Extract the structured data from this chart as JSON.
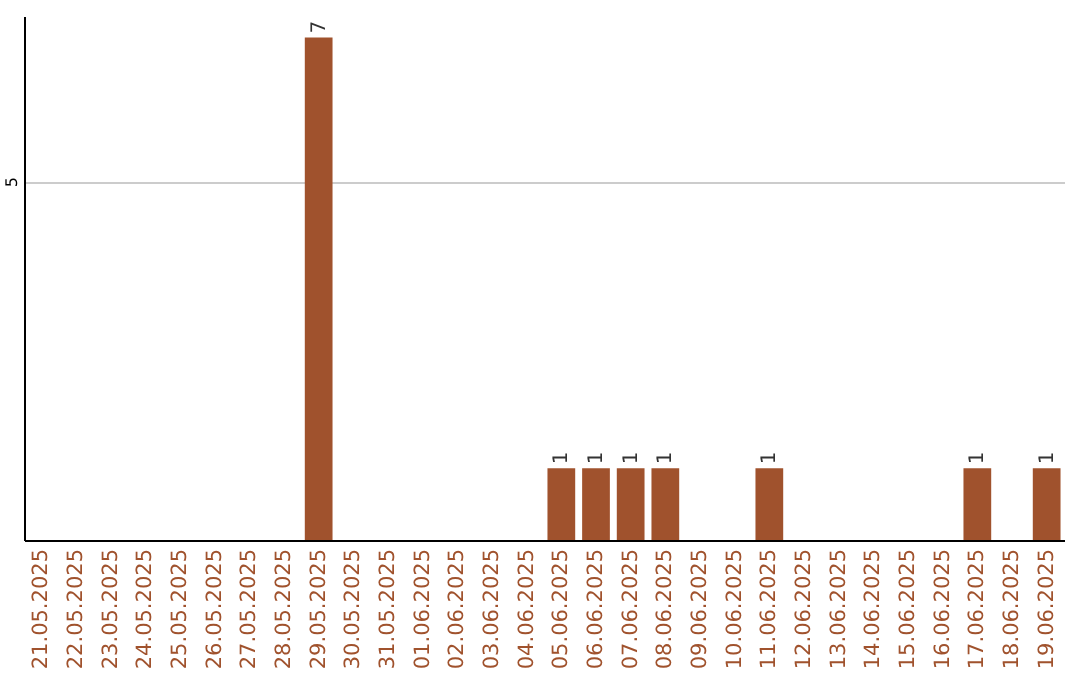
{
  "chart_data": {
    "type": "bar",
    "categories": [
      "21.05.2025",
      "22.05.2025",
      "23.05.2025",
      "24.05.2025",
      "25.05.2025",
      "26.05.2025",
      "27.05.2025",
      "28.05.2025",
      "29.05.2025",
      "30.05.2025",
      "31.05.2025",
      "01.06.2025",
      "02.06.2025",
      "03.06.2025",
      "04.06.2025",
      "05.06.2025",
      "06.06.2025",
      "07.06.2025",
      "08.06.2025",
      "09.06.2025",
      "10.06.2025",
      "11.06.2025",
      "12.06.2025",
      "13.06.2025",
      "14.06.2025",
      "15.06.2025",
      "16.06.2025",
      "17.06.2025",
      "18.06.2025",
      "19.06.2025"
    ],
    "values": [
      0,
      0,
      0,
      0,
      0,
      0,
      0,
      0,
      7,
      0,
      0,
      0,
      0,
      0,
      0,
      1,
      1,
      1,
      1,
      0,
      0,
      1,
      0,
      0,
      0,
      0,
      0,
      1,
      0,
      1
    ],
    "value_labels": [
      null,
      null,
      null,
      null,
      null,
      null,
      null,
      null,
      "7",
      null,
      null,
      null,
      null,
      null,
      null,
      "1",
      "1",
      "1",
      "1",
      null,
      null,
      "1",
      null,
      null,
      null,
      null,
      null,
      "1",
      null,
      "1"
    ],
    "color": "#a0522d",
    "ylim": [
      0,
      7.3
    ],
    "yticks": [
      5
    ],
    "grid": "y"
  }
}
